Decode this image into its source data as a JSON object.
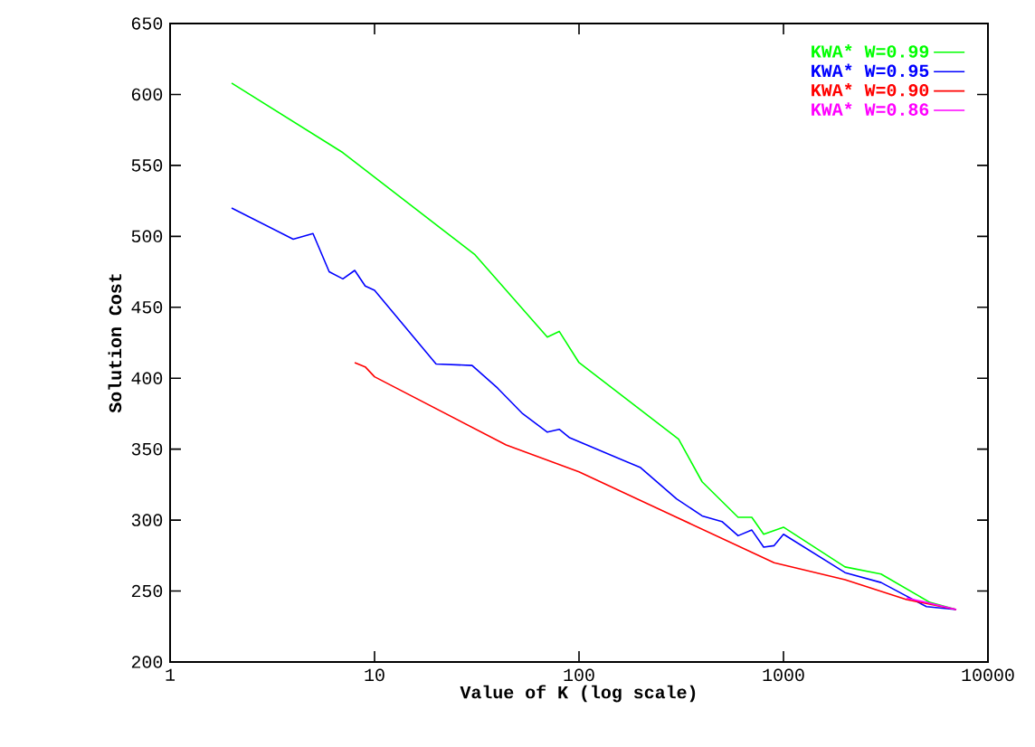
{
  "chart_data": {
    "type": "line",
    "xlabel": "Value of K (log scale)",
    "ylabel": "Solution Cost",
    "log": "x",
    "xlim": [
      1,
      10000
    ],
    "xticks": [
      1,
      10,
      100,
      1000,
      10000
    ],
    "ylim": [
      200,
      650
    ],
    "yticks": [
      200,
      250,
      300,
      350,
      400,
      450,
      500,
      550,
      600,
      650
    ],
    "grid": false,
    "legend": "top right",
    "marker": "none",
    "line_style": "solid",
    "series": [
      {
        "name": "KWA* W=0.99",
        "color": "#00ff00",
        "x": [
          2,
          7,
          31,
          70,
          80,
          100,
          307,
          400,
          600,
          700,
          800,
          1000,
          2000,
          3000,
          5200,
          7000
        ],
        "values": [
          608,
          559,
          487,
          429,
          433,
          411,
          357,
          327,
          302,
          302,
          290,
          295,
          267,
          262,
          242,
          237
        ]
      },
      {
        "name": "KWA* W=0.95",
        "color": "#0000ff",
        "x": [
          2,
          4,
          5,
          6,
          7,
          8,
          9,
          10,
          20,
          30,
          40,
          53,
          70,
          80,
          90,
          200,
          300,
          400,
          500,
          600,
          700,
          800,
          900,
          1000,
          2000,
          3000,
          5000,
          7000
        ],
        "values": [
          520,
          498,
          502,
          475,
          470,
          476,
          465,
          462,
          410,
          409,
          393,
          375,
          362,
          364,
          358,
          337,
          315,
          303,
          299,
          289,
          293,
          281,
          282,
          290,
          263,
          256,
          239,
          237
        ]
      },
      {
        "name": "KWA* W=0.90",
        "color": "#ff0000",
        "x": [
          8,
          9,
          10,
          44,
          100,
          300,
          900,
          2000,
          4000,
          7000
        ],
        "values": [
          411,
          408,
          401,
          353,
          334,
          302,
          270,
          258,
          244,
          237
        ]
      },
      {
        "name": "KWA* W=0.86",
        "color": "#ff00ff",
        "x": [
          4000,
          5000,
          7000
        ],
        "values": [
          245,
          242,
          237
        ]
      }
    ]
  }
}
